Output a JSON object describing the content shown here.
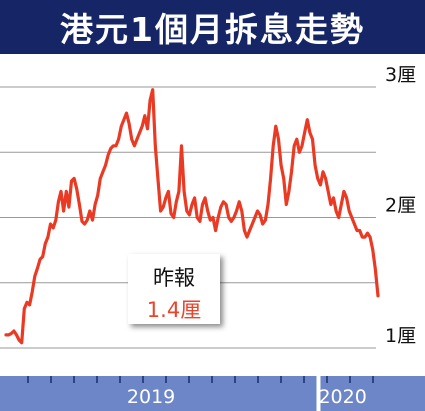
{
  "title": "港元1個月拆息走勢",
  "colors": {
    "title_bg": "#152566",
    "line": "#ea3a24",
    "axis_band": "#6d86c8",
    "grid": "#999999",
    "tick_text": "#111111",
    "callout_value": "#e8452c"
  },
  "callout": {
    "label": "昨報",
    "value": "1.4厘"
  },
  "chart_data": {
    "type": "line",
    "title": "港元1個月拆息走勢",
    "y_unit": "厘",
    "ylim": [
      0.9,
      3.1
    ],
    "yticks": [
      1,
      1.5,
      2,
      2.5,
      3
    ],
    "ytick_labels": [
      {
        "value": 1,
        "text": "1厘"
      },
      {
        "value": 2,
        "text": "2厘"
      },
      {
        "value": 3,
        "text": "3厘"
      }
    ],
    "x_labels": [
      {
        "pos": 0.39,
        "text": "2019"
      },
      {
        "pos": 0.905,
        "text": "2020"
      }
    ],
    "year_divider_pos": 0.84,
    "grid": "horizontal",
    "series": [
      {
        "values": [
          1.1,
          1.1,
          1.11,
          1.13,
          1.1,
          1.06,
          1.04,
          1.3,
          1.35,
          1.33,
          1.43,
          1.55,
          1.61,
          1.68,
          1.7,
          1.8,
          1.85,
          1.95,
          1.92,
          1.98,
          2.12,
          2.2,
          2.05,
          2.2,
          2.08,
          2.28,
          2.3,
          2.22,
          2.1,
          1.97,
          1.95,
          1.98,
          2.05,
          1.98,
          2.1,
          2.17,
          2.3,
          2.35,
          2.4,
          2.48,
          2.53,
          2.55,
          2.55,
          2.6,
          2.7,
          2.75,
          2.8,
          2.72,
          2.6,
          2.55,
          2.6,
          2.65,
          2.7,
          2.78,
          2.68,
          2.9,
          2.98,
          2.55,
          2.3,
          2.05,
          2.08,
          2.15,
          2.2,
          2.03,
          2.0,
          2.12,
          2.2,
          2.55,
          2.2,
          2.05,
          2.02,
          2.1,
          2.15,
          2.0,
          1.97,
          2.1,
          2.15,
          2.05,
          1.98,
          2.0,
          1.9,
          2.0,
          2.08,
          2.12,
          2.1,
          2.0,
          1.97,
          2.0,
          2.05,
          2.12,
          2.05,
          1.9,
          1.85,
          1.9,
          1.95,
          2.0,
          2.05,
          2.02,
          1.95,
          1.98,
          2.1,
          2.3,
          2.55,
          2.7,
          2.6,
          2.4,
          2.3,
          2.1,
          2.2,
          2.35,
          2.55,
          2.6,
          2.5,
          2.55,
          2.65,
          2.75,
          2.65,
          2.6,
          2.4,
          2.3,
          2.25,
          2.35,
          2.3,
          2.2,
          2.1,
          2.15,
          2.05,
          2.0,
          2.1,
          2.2,
          2.15,
          2.05,
          2.0,
          1.95,
          1.9,
          1.9,
          1.85,
          1.85,
          1.88,
          1.85,
          1.75,
          1.6,
          1.4
        ]
      }
    ]
  }
}
